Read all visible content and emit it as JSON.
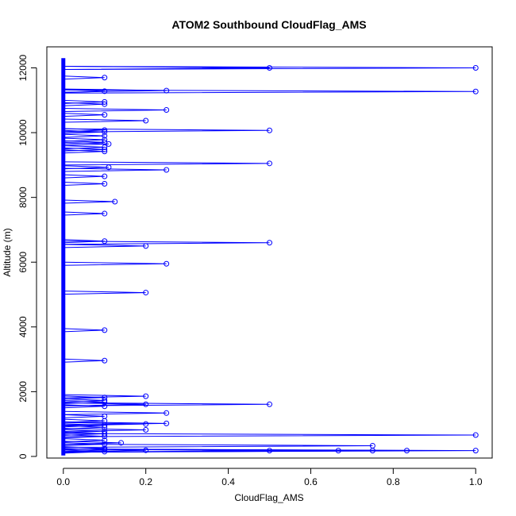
{
  "chart_data": {
    "type": "scatter",
    "title": "ATOM2 Southbound CloudFlag_AMS",
    "xlabel": "CloudFlag_AMS",
    "ylabel": "Altitude (m)",
    "xlim": [
      -0.04,
      1.04
    ],
    "ylim": [
      -50,
      12650
    ],
    "xticks": [
      0,
      0.2,
      0.4,
      0.6,
      0.8,
      1.0
    ],
    "xtick_labels": [
      "0.0",
      "0.2",
      "0.4",
      "0.6",
      "0.8",
      "1.0"
    ],
    "yticks": [
      0,
      2000,
      4000,
      6000,
      8000,
      10000,
      12000
    ],
    "yticks_labels": [
      "0",
      "2000",
      "4000",
      "6000",
      "8000",
      "10000",
      "12000"
    ],
    "grid": false,
    "line_color": "#0000ff",
    "point_color": "#0000ff",
    "baseline": {
      "x": 0,
      "y_min": 30,
      "y_max": 12300
    },
    "points": [
      {
        "x": 0.5,
        "y": 12000
      },
      {
        "x": 1.0,
        "y": 12000
      },
      {
        "x": 0.1,
        "y": 11700
      },
      {
        "x": 0.25,
        "y": 11300
      },
      {
        "x": 0.1,
        "y": 11280
      },
      {
        "x": 1.0,
        "y": 11270
      },
      {
        "x": 0.1,
        "y": 10950
      },
      {
        "x": 0.1,
        "y": 10880
      },
      {
        "x": 0.25,
        "y": 10700
      },
      {
        "x": 0.1,
        "y": 10550
      },
      {
        "x": 0.2,
        "y": 10370
      },
      {
        "x": 0.1,
        "y": 10080
      },
      {
        "x": 0.5,
        "y": 10070
      },
      {
        "x": 0.1,
        "y": 10020
      },
      {
        "x": 0.1,
        "y": 9900
      },
      {
        "x": 0.1,
        "y": 9780
      },
      {
        "x": 0.1,
        "y": 9700
      },
      {
        "x": 0.11,
        "y": 9650
      },
      {
        "x": 0.1,
        "y": 9550
      },
      {
        "x": 0.1,
        "y": 9480
      },
      {
        "x": 0.1,
        "y": 9420
      },
      {
        "x": 0.5,
        "y": 9050
      },
      {
        "x": 0.11,
        "y": 8930
      },
      {
        "x": 0.25,
        "y": 8850
      },
      {
        "x": 0.1,
        "y": 8650
      },
      {
        "x": 0.1,
        "y": 8420
      },
      {
        "x": 0.125,
        "y": 7870
      },
      {
        "x": 0.1,
        "y": 7500
      },
      {
        "x": 0.1,
        "y": 6650
      },
      {
        "x": 0.5,
        "y": 6600
      },
      {
        "x": 0.2,
        "y": 6500
      },
      {
        "x": 0.25,
        "y": 5950
      },
      {
        "x": 0.2,
        "y": 5060
      },
      {
        "x": 0.1,
        "y": 3900
      },
      {
        "x": 0.1,
        "y": 2960
      },
      {
        "x": 0.2,
        "y": 1860
      },
      {
        "x": 0.1,
        "y": 1820
      },
      {
        "x": 0.1,
        "y": 1730
      },
      {
        "x": 0.1,
        "y": 1680
      },
      {
        "x": 0.2,
        "y": 1610
      },
      {
        "x": 0.5,
        "y": 1610
      },
      {
        "x": 0.1,
        "y": 1550
      },
      {
        "x": 0.25,
        "y": 1340
      },
      {
        "x": 0.1,
        "y": 1240
      },
      {
        "x": 0.1,
        "y": 1100
      },
      {
        "x": 0.25,
        "y": 1020
      },
      {
        "x": 0.2,
        "y": 1000
      },
      {
        "x": 0.1,
        "y": 960
      },
      {
        "x": 0.1,
        "y": 900
      },
      {
        "x": 0.2,
        "y": 820
      },
      {
        "x": 0.1,
        "y": 780
      },
      {
        "x": 0.1,
        "y": 700
      },
      {
        "x": 1.0,
        "y": 660
      },
      {
        "x": 0.1,
        "y": 620
      },
      {
        "x": 0.1,
        "y": 500
      },
      {
        "x": 0.14,
        "y": 420
      },
      {
        "x": 0.1,
        "y": 380
      },
      {
        "x": 0.75,
        "y": 330
      },
      {
        "x": 0.1,
        "y": 250
      },
      {
        "x": 0.1,
        "y": 200
      },
      {
        "x": 0.2,
        "y": 190
      },
      {
        "x": 0.5,
        "y": 180
      },
      {
        "x": 0.667,
        "y": 180
      },
      {
        "x": 0.75,
        "y": 180
      },
      {
        "x": 0.833,
        "y": 180
      },
      {
        "x": 1.0,
        "y": 180
      },
      {
        "x": 0.1,
        "y": 150
      }
    ]
  }
}
